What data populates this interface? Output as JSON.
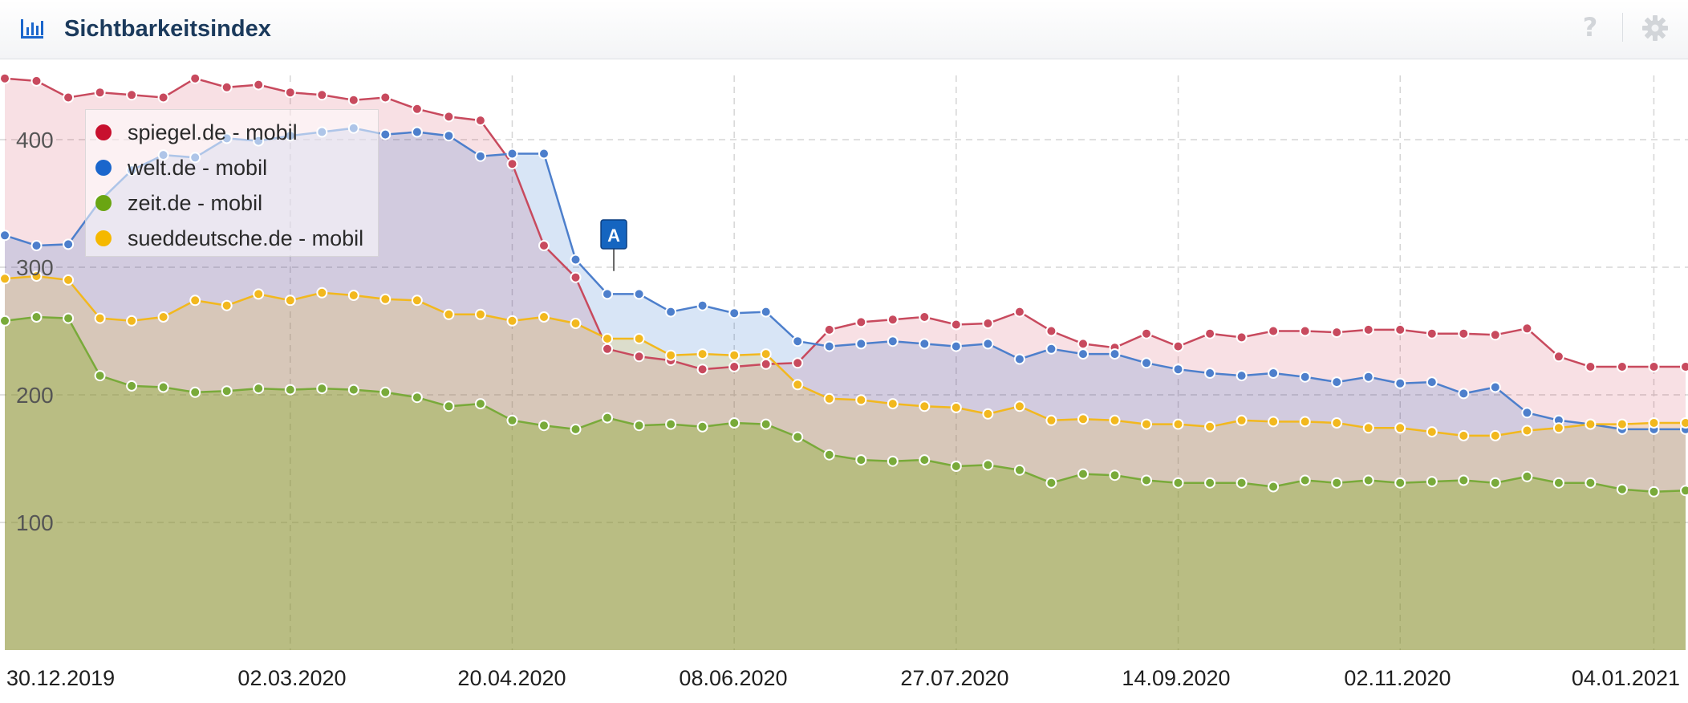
{
  "header": {
    "title": "Sichtbarkeitsindex",
    "help_glyph": "?",
    "icons": {
      "chart": "bar-chart-icon",
      "help": "help-icon",
      "settings": "gear-icon"
    }
  },
  "chart_data": {
    "type": "area",
    "title": "",
    "xlabel": "",
    "ylabel": "",
    "ylim": [
      0,
      450
    ],
    "yticks": [
      100,
      200,
      300,
      400
    ],
    "grid": true,
    "legend_position": "top-left",
    "x_tick_labels": [
      "30.12.2019",
      "02.03.2020",
      "20.04.2020",
      "08.06.2020",
      "27.07.2020",
      "14.09.2020",
      "02.11.2020",
      "04.01.2021"
    ],
    "annotations": [
      {
        "label": "A",
        "x_index": 19,
        "color": "#1565c0"
      }
    ],
    "series": [
      {
        "name": "spiegel.de - mobil",
        "color": "#c8102e",
        "values": [
          448,
          446,
          433,
          437,
          435,
          433,
          448,
          441,
          443,
          437,
          435,
          431,
          433,
          424,
          418,
          415,
          381,
          317,
          292,
          236,
          230,
          227,
          220,
          222,
          224,
          225,
          251,
          257,
          259,
          261,
          255,
          256,
          265,
          250,
          240,
          237,
          248,
          238,
          248,
          245,
          250,
          250,
          249,
          251,
          251,
          248,
          248,
          247,
          252,
          230,
          222,
          222,
          222,
          222
        ]
      },
      {
        "name": "welt.de - mobil",
        "color": "#1a66cc",
        "values": [
          325,
          317,
          318,
          352,
          376,
          388,
          386,
          401,
          399,
          403,
          406,
          409,
          404,
          406,
          403,
          387,
          389,
          389,
          306,
          279,
          279,
          265,
          270,
          264,
          265,
          242,
          238,
          240,
          242,
          240,
          238,
          240,
          228,
          236,
          232,
          232,
          225,
          220,
          217,
          215,
          217,
          214,
          210,
          214,
          209,
          210,
          201,
          206,
          186,
          180,
          177,
          173,
          173,
          173
        ]
      },
      {
        "name": "zeit.de - mobil",
        "color": "#6aa512",
        "values": [
          258,
          261,
          260,
          215,
          207,
          206,
          202,
          203,
          205,
          204,
          205,
          204,
          202,
          198,
          191,
          193,
          180,
          176,
          173,
          182,
          176,
          177,
          175,
          178,
          177,
          167,
          153,
          149,
          148,
          149,
          144,
          145,
          141,
          131,
          138,
          137,
          133,
          131,
          131,
          131,
          128,
          133,
          131,
          133,
          131,
          132,
          133,
          131,
          136,
          131,
          131,
          126,
          124,
          125
        ]
      },
      {
        "name": "sueddeutsche.de - mobil",
        "color": "#f5b800",
        "values": [
          291,
          293,
          290,
          260,
          258,
          261,
          274,
          270,
          279,
          274,
          280,
          278,
          275,
          274,
          263,
          263,
          258,
          261,
          256,
          244,
          244,
          231,
          232,
          231,
          232,
          208,
          197,
          196,
          193,
          191,
          190,
          185,
          191,
          180,
          181,
          180,
          177,
          177,
          175,
          180,
          179,
          179,
          178,
          174,
          174,
          171,
          168,
          168,
          172,
          174,
          177,
          177,
          178,
          178
        ]
      }
    ]
  }
}
